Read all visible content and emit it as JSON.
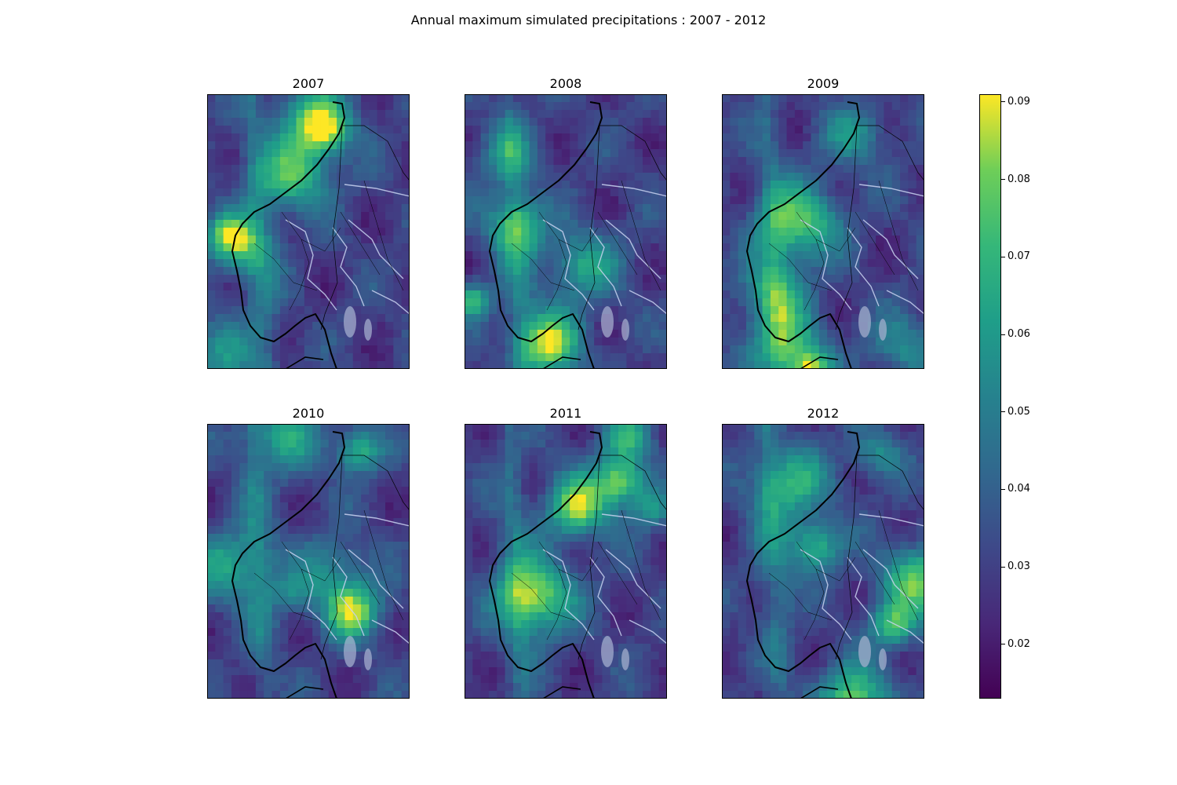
{
  "figure": {
    "suptitle": "Annual maximum simulated precipitations : 2007 - 2012"
  },
  "panels": [
    {
      "title": "2007"
    },
    {
      "title": "2008"
    },
    {
      "title": "2009"
    },
    {
      "title": "2010"
    },
    {
      "title": "2011"
    },
    {
      "title": "2012"
    }
  ],
  "colorbar": {
    "colormap": "viridis",
    "range": [
      0.013,
      0.091
    ],
    "ticks": [
      "0.02",
      "0.03",
      "0.04",
      "0.05",
      "0.06",
      "0.07",
      "0.08",
      "0.09"
    ],
    "tick_values": [
      0.02,
      0.03,
      0.04,
      0.05,
      0.06,
      0.07,
      0.08,
      0.09
    ]
  },
  "colors": {
    "coastline": "#000000",
    "rivers": "#c8d2f0",
    "lakes": "#aab4d2",
    "borders": "#000000"
  }
}
